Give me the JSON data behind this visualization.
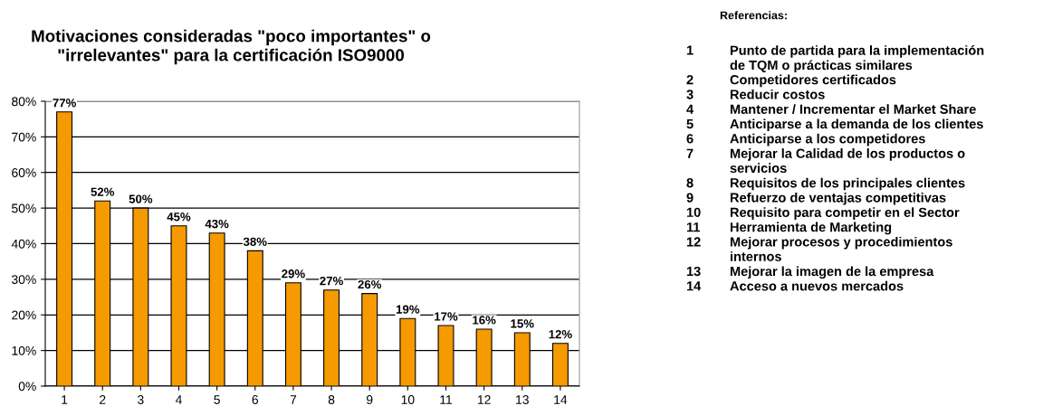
{
  "chart_data": {
    "type": "bar",
    "title": "Motivaciones consideradas \"poco importantes\" o\n\"irrelevantes\" para la certificación ISO9000",
    "categories": [
      "1",
      "2",
      "3",
      "4",
      "5",
      "6",
      "7",
      "8",
      "9",
      "10",
      "11",
      "12",
      "13",
      "14"
    ],
    "values": [
      77,
      52,
      50,
      45,
      43,
      38,
      29,
      27,
      26,
      19,
      17,
      16,
      15,
      12
    ],
    "value_labels": [
      "77%",
      "52%",
      "50%",
      "45%",
      "43%",
      "38%",
      "29%",
      "27%",
      "26%",
      "19%",
      "17%",
      "16%",
      "15%",
      "12%"
    ],
    "color": "#f59a00",
    "ylim": [
      0,
      80
    ],
    "yticks": [
      {
        "value": 0,
        "label": "0%"
      },
      {
        "value": 10,
        "label": "10%"
      },
      {
        "value": 20,
        "label": "20%"
      },
      {
        "value": 30,
        "label": "30%"
      },
      {
        "value": 40,
        "label": "40%"
      },
      {
        "value": 50,
        "label": "50%"
      },
      {
        "value": 60,
        "label": "60%"
      },
      {
        "value": 70,
        "label": "70%"
      },
      {
        "value": 80,
        "label": "80%"
      }
    ],
    "grid": "y",
    "legend": false,
    "annotations": [
      "Referencias:",
      "1 Punto de partida para la implementación\nde TQM o prácticas similares",
      "2 Competidores certificados",
      "3 Reducir costos",
      "4 Mantener / Incrementar el Market Share",
      "5 Anticiparse a la demanda de los clientes",
      "6 Anticiparse a los competidores",
      "7 Mejorar la Calidad de los productos o\nservicios",
      "8 Requisitos de los principales clientes",
      "9 Refuerzo de ventajas competitivas",
      "10 Requisito para competir en el Sector",
      "11 Herramienta de Marketing",
      "12 Mejorar procesos y procedimientos\ninternos",
      "13 Mejorar la imagen de la empresa",
      "14 Acceso a nuevos mercados"
    ]
  }
}
